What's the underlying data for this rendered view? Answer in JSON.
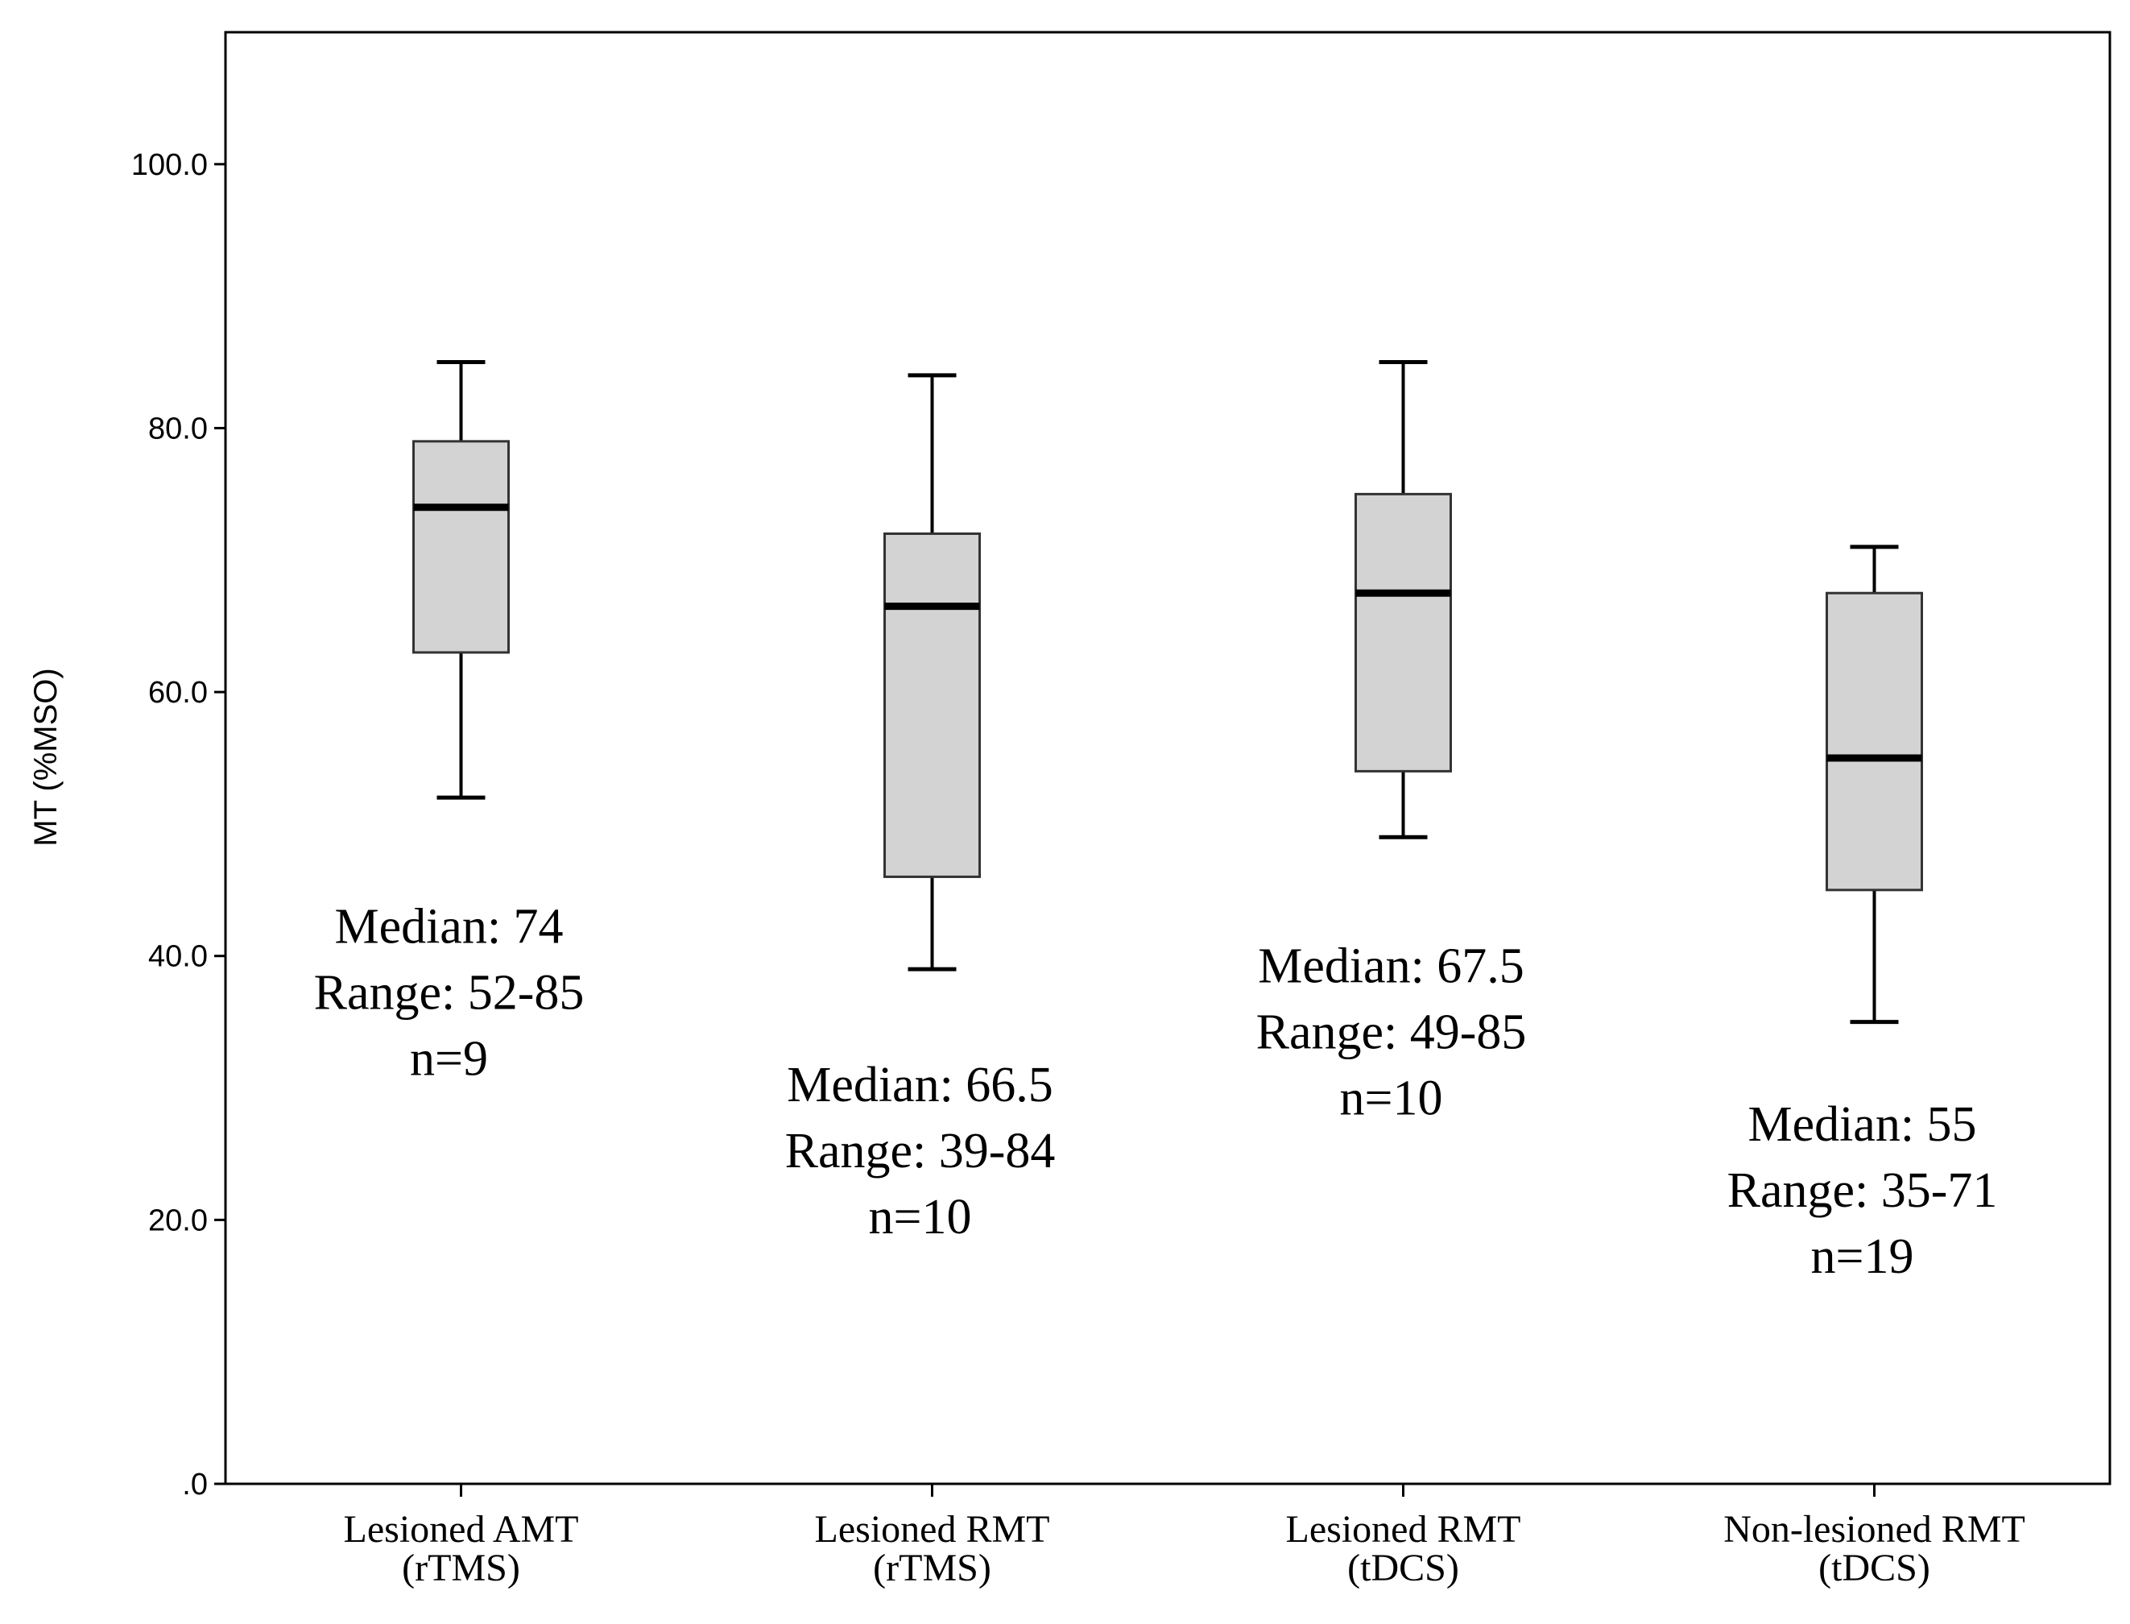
{
  "chart_data": {
    "type": "boxplot",
    "title": "",
    "xlabel": "",
    "ylabel": "MT (%MSO)",
    "ylim": [
      0,
      110
    ],
    "yticks": [
      {
        "value": 0,
        "label": ".0"
      },
      {
        "value": 20,
        "label": "20.0"
      },
      {
        "value": 40,
        "label": "40.0"
      },
      {
        "value": 60,
        "label": "60.0"
      },
      {
        "value": 80,
        "label": "80.0"
      },
      {
        "value": 100,
        "label": "100.0"
      }
    ],
    "grid": false,
    "box_color": "#d3d3d3",
    "categories": [
      {
        "label_line1": "Lesioned AMT",
        "label_line2": "(rTMS)",
        "min": 52,
        "q1": 63,
        "median": 74,
        "q3": 79,
        "max": 85,
        "annotation": [
          "Median: 74",
          "Range: 52-85",
          "n=9"
        ],
        "annotation_level": 41
      },
      {
        "label_line1": "Lesioned RMT",
        "label_line2": "(rTMS)",
        "min": 39,
        "q1": 46,
        "median": 66.5,
        "q3": 72,
        "max": 84,
        "annotation": [
          "Median: 66.5",
          "Range: 39-84",
          "n=10"
        ],
        "annotation_level": 29
      },
      {
        "label_line1": "Lesioned RMT",
        "label_line2": "(tDCS)",
        "min": 49,
        "q1": 54,
        "median": 67.5,
        "q3": 75,
        "max": 85,
        "annotation": [
          "Median: 67.5",
          "Range: 49-85",
          "n=10"
        ],
        "annotation_level": 38
      },
      {
        "label_line1": "Non-lesioned RMT",
        "label_line2": "(tDCS)",
        "min": 35,
        "q1": 45,
        "median": 55,
        "q3": 67.5,
        "max": 71,
        "annotation": [
          "Median: 55",
          "Range: 35-71",
          "n=19"
        ],
        "annotation_level": 26
      }
    ]
  }
}
